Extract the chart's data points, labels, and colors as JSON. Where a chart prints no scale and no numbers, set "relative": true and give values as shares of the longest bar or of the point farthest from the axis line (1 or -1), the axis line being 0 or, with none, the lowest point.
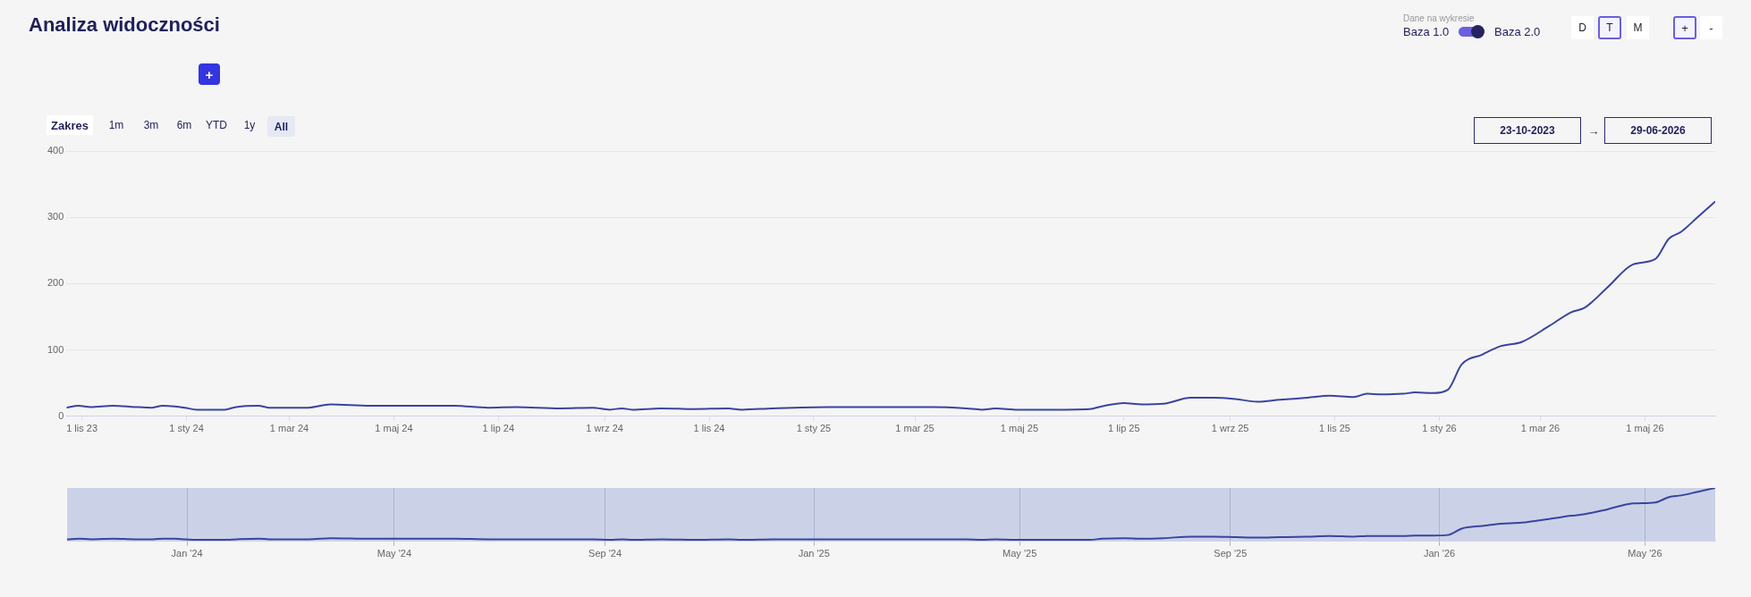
{
  "chart_data": [
    {
      "type": "line",
      "title": "Analiza widoczności",
      "annotations": [
        "Zakres",
        "1m",
        "3m",
        "6m",
        "YTD",
        "1y",
        "All",
        "Dane na wykresie",
        "Baza 1.0",
        "Baza 2.0",
        "D",
        "T",
        "M",
        "+",
        "-",
        "23-10-2023",
        "→",
        "29-06-2026",
        "+"
      ],
      "x": [
        "2023-10-23",
        "2023-10-30",
        "2023-11-06",
        "2023-11-19",
        "2023-12-02",
        "2023-12-12",
        "2023-12-18",
        "2023-12-25",
        "2023-12-31",
        "2024-01-07",
        "2024-01-16",
        "2024-01-23",
        "2024-01-30",
        "2024-02-12",
        "2024-02-18",
        "2024-03-12",
        "2024-03-25",
        "2024-04-17",
        "2024-06-05",
        "2024-06-25",
        "2024-07-11",
        "2024-08-06",
        "2024-08-25",
        "2024-09-04",
        "2024-09-11",
        "2024-09-17",
        "2024-10-04",
        "2024-10-23",
        "2024-11-12",
        "2024-11-20",
        "2024-12-08",
        "2025-01-10",
        "2025-02-07",
        "2025-03-12",
        "2025-03-31",
        "2025-04-09",
        "2025-04-17",
        "2025-04-30",
        "2025-05-16",
        "2025-06-11",
        "2025-06-18",
        "2025-07-01",
        "2025-07-11",
        "2025-07-24",
        "2025-08-09",
        "2025-08-22",
        "2025-09-04",
        "2025-09-17",
        "2025-09-30",
        "2025-10-16",
        "2025-10-29",
        "2025-11-12",
        "2025-11-20",
        "2025-11-28",
        "2025-12-11",
        "2025-12-18",
        "2025-12-28",
        "2026-01-06",
        "2026-01-14",
        "2026-01-26",
        "2026-02-06",
        "2026-02-18",
        "2026-03-06",
        "2026-03-19",
        "2026-03-27",
        "2026-04-09",
        "2026-04-24",
        "2026-05-07",
        "2026-05-15",
        "2026-05-22",
        "2026-06-01",
        "2026-06-11"
      ],
      "series": [
        {
          "color": "#3a44a0",
          "values": [
            13,
            16,
            14,
            16,
            14,
            13,
            16,
            15,
            13,
            10,
            10,
            10,
            14,
            16,
            13,
            13,
            18,
            16,
            16,
            13,
            14,
            12,
            13,
            10,
            12,
            10,
            12,
            11,
            12,
            10,
            12,
            14,
            14,
            14,
            12,
            10,
            12,
            10,
            10,
            11,
            15,
            20,
            18,
            19,
            28,
            28,
            26,
            22,
            25,
            28,
            31,
            29,
            34,
            33,
            34,
            36,
            35,
            40,
            78,
            93,
            106,
            112,
            136,
            157,
            164,
            194,
            229,
            237,
            268,
            278,
            301,
            324
          ]
        }
      ],
      "xlim": [
        "2023-10-23",
        "2026-06-11"
      ],
      "xticks": [
        {
          "value": "2023-11-01",
          "label": "1 lis 23"
        },
        {
          "value": "2024-01-01",
          "label": "1 sty 24"
        },
        {
          "value": "2024-03-01",
          "label": "1 mar 24"
        },
        {
          "value": "2024-05-01",
          "label": "1 maj 24"
        },
        {
          "value": "2024-07-01",
          "label": "1 lip 24"
        },
        {
          "value": "2024-09-01",
          "label": "1 wrz 24"
        },
        {
          "value": "2024-11-01",
          "label": "1 lis 24"
        },
        {
          "value": "2025-01-01",
          "label": "1 sty 25"
        },
        {
          "value": "2025-03-01",
          "label": "1 mar 25"
        },
        {
          "value": "2025-05-01",
          "label": "1 maj 25"
        },
        {
          "value": "2025-07-01",
          "label": "1 lip 25"
        },
        {
          "value": "2025-09-01",
          "label": "1 wrz 25"
        },
        {
          "value": "2025-11-01",
          "label": "1 lis 25"
        },
        {
          "value": "2026-01-01",
          "label": "1 sty 26"
        },
        {
          "value": "2026-03-01",
          "label": "1 mar 26"
        },
        {
          "value": "2026-05-01",
          "label": "1 maj 26"
        }
      ],
      "ylim": [
        0,
        400
      ],
      "yticks": [
        0,
        100,
        200,
        300,
        400
      ],
      "grid": "y"
    },
    {
      "type": "line",
      "x": [
        "2023-10-23",
        "2023-10-30",
        "2023-11-06",
        "2023-11-19",
        "2023-12-02",
        "2023-12-12",
        "2023-12-18",
        "2023-12-25",
        "2023-12-31",
        "2024-01-07",
        "2024-01-16",
        "2024-01-23",
        "2024-01-30",
        "2024-02-12",
        "2024-02-18",
        "2024-03-12",
        "2024-03-25",
        "2024-04-17",
        "2024-06-05",
        "2024-06-25",
        "2024-07-11",
        "2024-08-06",
        "2024-08-25",
        "2024-09-04",
        "2024-09-11",
        "2024-09-17",
        "2024-10-04",
        "2024-10-23",
        "2024-11-12",
        "2024-11-20",
        "2024-12-08",
        "2025-01-10",
        "2025-02-07",
        "2025-03-12",
        "2025-03-31",
        "2025-04-09",
        "2025-04-17",
        "2025-04-30",
        "2025-05-16",
        "2025-06-11",
        "2025-06-18",
        "2025-07-01",
        "2025-07-11",
        "2025-07-24",
        "2025-08-09",
        "2025-08-22",
        "2025-09-04",
        "2025-09-17",
        "2025-09-30",
        "2025-10-16",
        "2025-10-29",
        "2025-11-12",
        "2025-11-20",
        "2025-11-28",
        "2025-12-11",
        "2025-12-18",
        "2025-12-28",
        "2026-01-06",
        "2026-01-14",
        "2026-01-26",
        "2026-02-06",
        "2026-02-18",
        "2026-03-06",
        "2026-03-19",
        "2026-03-27",
        "2026-04-09",
        "2026-04-24",
        "2026-05-07",
        "2026-05-15",
        "2026-05-22",
        "2026-06-01",
        "2026-06-11"
      ],
      "series": [
        {
          "color": "#3a44a0",
          "values": [
            0.04,
            0.05,
            0.04,
            0.05,
            0.04,
            0.04,
            0.05,
            0.05,
            0.04,
            0.03,
            0.03,
            0.03,
            0.04,
            0.05,
            0.04,
            0.04,
            0.06,
            0.05,
            0.05,
            0.04,
            0.04,
            0.04,
            0.04,
            0.03,
            0.04,
            0.03,
            0.04,
            0.03,
            0.04,
            0.03,
            0.04,
            0.04,
            0.04,
            0.04,
            0.04,
            0.03,
            0.04,
            0.03,
            0.03,
            0.03,
            0.05,
            0.06,
            0.05,
            0.06,
            0.09,
            0.09,
            0.08,
            0.07,
            0.08,
            0.09,
            0.1,
            0.09,
            0.1,
            0.1,
            0.1,
            0.11,
            0.11,
            0.12,
            0.24,
            0.29,
            0.33,
            0.35,
            0.42,
            0.48,
            0.51,
            0.6,
            0.71,
            0.73,
            0.83,
            0.86,
            0.93,
            1
          ]
        }
      ],
      "xlim": [
        "2023-10-23",
        "2026-06-11"
      ],
      "xticks": [
        {
          "value": "2024-01-01",
          "label": "Jan '24"
        },
        {
          "value": "2024-05-01",
          "label": "May '24"
        },
        {
          "value": "2024-09-01",
          "label": "Sep '24"
        },
        {
          "value": "2025-01-01",
          "label": "Jan '25"
        },
        {
          "value": "2025-05-01",
          "label": "May '25"
        },
        {
          "value": "2025-09-01",
          "label": "Sep '25"
        },
        {
          "value": "2026-01-01",
          "label": "Jan '26"
        },
        {
          "value": "2026-05-01",
          "label": "May '26"
        }
      ],
      "relative": true,
      "grid": "x",
      "tick_labels": "x",
      "bands": [
        {
          "axis": "x",
          "from": "2023-10-23",
          "to": "2026-06-11",
          "color": "#cbd2e8"
        }
      ]
    }
  ]
}
